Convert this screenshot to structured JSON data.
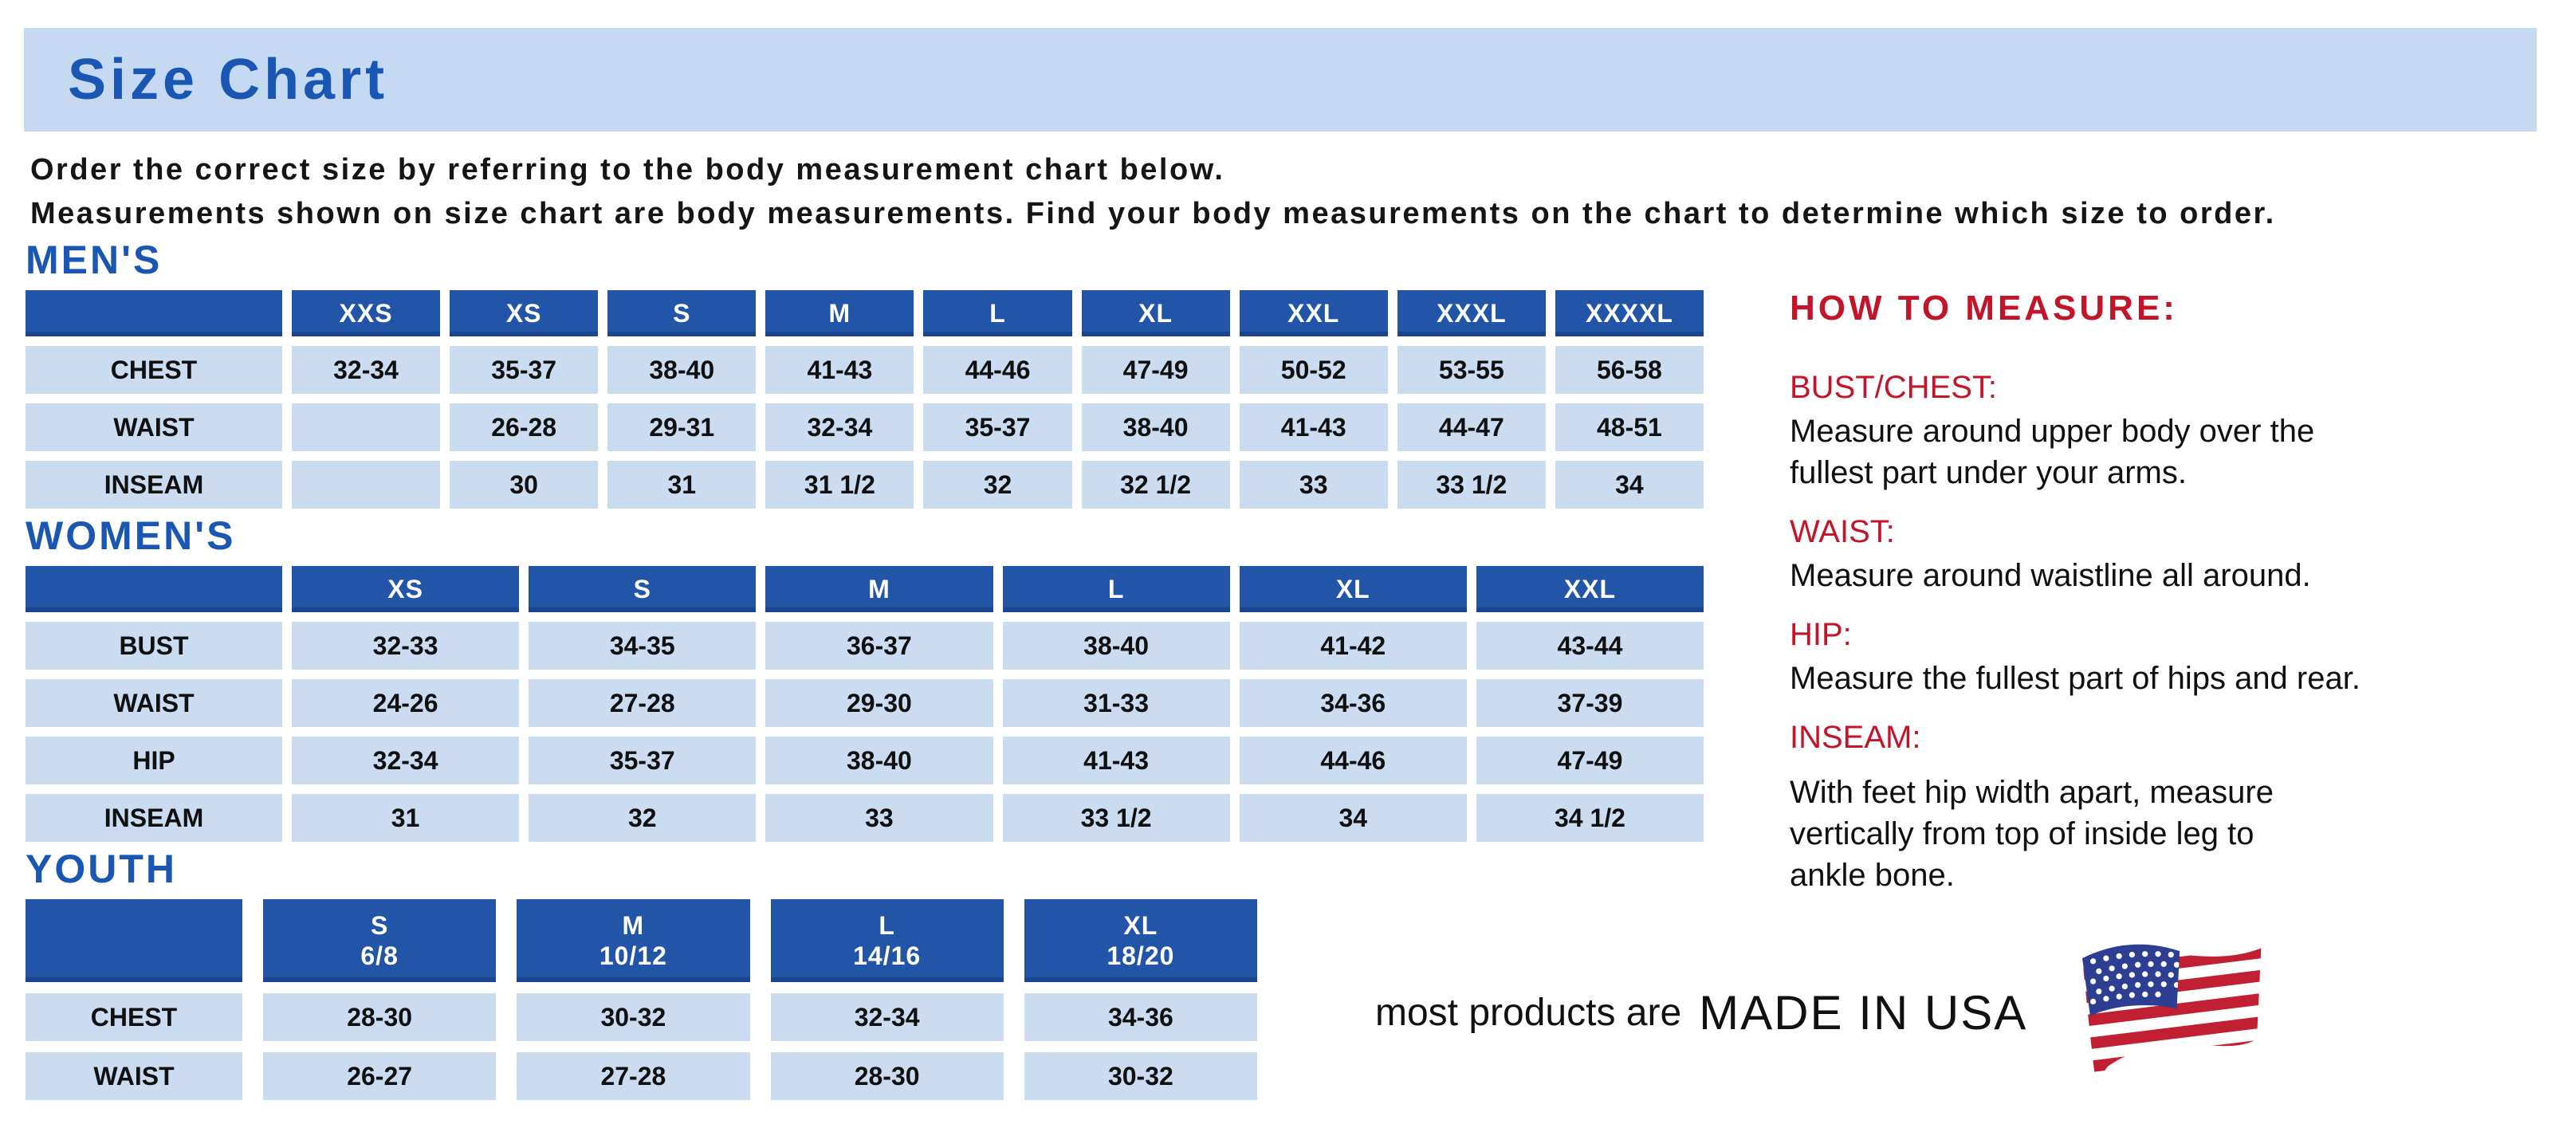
{
  "page": {
    "title": "Size Chart",
    "intro_line_1": "Order the correct size by referring to the body measurement chart below.",
    "intro_line_2": "Measurements shown on size chart are body measurements.  Find your body measurements on the chart to determine which size to order."
  },
  "tables": {
    "mens": {
      "heading": "MEN'S",
      "columns": [
        "XXS",
        "XS",
        "S",
        "M",
        "L",
        "XL",
        "XXL",
        "XXXL",
        "XXXXL"
      ],
      "rows": [
        {
          "label": "CHEST",
          "values": [
            "32-34",
            "35-37",
            "38-40",
            "41-43",
            "44-46",
            "47-49",
            "50-52",
            "53-55",
            "56-58"
          ]
        },
        {
          "label": "WAIST",
          "values": [
            "",
            "26-28",
            "29-31",
            "32-34",
            "35-37",
            "38-40",
            "41-43",
            "44-47",
            "48-51"
          ]
        },
        {
          "label": "INSEAM",
          "values": [
            "",
            "30",
            "31",
            "31 1/2",
            "32",
            "32 1/2",
            "33",
            "33 1/2",
            "34"
          ]
        }
      ]
    },
    "womens": {
      "heading": "WOMEN'S",
      "columns": [
        "XS",
        "S",
        "M",
        "L",
        "XL",
        "XXL"
      ],
      "rows": [
        {
          "label": "BUST",
          "values": [
            "32-33",
            "34-35",
            "36-37",
            "38-40",
            "41-42",
            "43-44"
          ]
        },
        {
          "label": "WAIST",
          "values": [
            "24-26",
            "27-28",
            "29-30",
            "31-33",
            "34-36",
            "37-39"
          ]
        },
        {
          "label": "HIP",
          "values": [
            "32-34",
            "35-37",
            "38-40",
            "41-43",
            "44-46",
            "47-49"
          ]
        },
        {
          "label": "INSEAM",
          "values": [
            "31",
            "32",
            "33",
            "33 1/2",
            "34",
            "34 1/2"
          ]
        }
      ]
    },
    "youth": {
      "heading": "YOUTH",
      "columns": [
        {
          "size": "S",
          "range": "6/8"
        },
        {
          "size": "M",
          "range": "10/12"
        },
        {
          "size": "L",
          "range": "14/16"
        },
        {
          "size": "XL",
          "range": "18/20"
        }
      ],
      "rows": [
        {
          "label": "CHEST",
          "values": [
            "28-30",
            "30-32",
            "32-34",
            "34-36"
          ]
        },
        {
          "label": "WAIST",
          "values": [
            "26-27",
            "27-28",
            "28-30",
            "30-32"
          ]
        }
      ]
    }
  },
  "how_to_measure": {
    "heading": "HOW TO MEASURE:",
    "items": [
      {
        "label": "BUST/CHEST:",
        "lines": [
          "Measure around upper body over the",
          "fullest part under your arms."
        ]
      },
      {
        "label": "WAIST:",
        "lines": [
          "Measure around waistline all around."
        ]
      },
      {
        "label": "HIP:",
        "lines": [
          "Measure the fullest part of hips and rear."
        ]
      },
      {
        "label": "INSEAM:",
        "lines": [
          "With feet hip width apart, measure",
          "vertically from top of inside leg to",
          "ankle bone."
        ]
      }
    ]
  },
  "footer": {
    "prefix": "most products are",
    "emphasis": "MADE IN USA",
    "flag_icon": "usa-flag-icon"
  },
  "colors": {
    "title_blue": "#1a57b5",
    "band_bg": "#c6d9f2",
    "header_blue": "#2255a8",
    "cell_blue": "#cbdcf1",
    "red": "#c3142a",
    "flag_red": "#c02032",
    "flag_navy": "#2d3f93"
  }
}
